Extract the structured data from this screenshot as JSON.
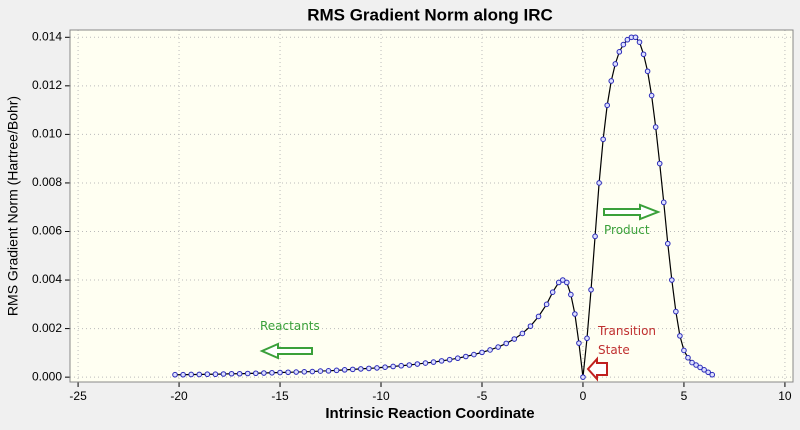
{
  "chart_data": {
    "type": "line",
    "title": "RMS Gradient Norm along IRC",
    "x_label": "Intrinsic Reaction Coordinate",
    "y_label": "RMS Gradient Norm (Hartree/Bohr)",
    "x": [
      -20.2,
      -19.8,
      -19.4,
      -19.0,
      -18.6,
      -18.2,
      -17.8,
      -17.4,
      -17.0,
      -16.6,
      -16.2,
      -15.8,
      -15.4,
      -15.0,
      -14.6,
      -14.2,
      -13.8,
      -13.4,
      -13.0,
      -12.6,
      -12.2,
      -11.8,
      -11.4,
      -11.0,
      -10.6,
      -10.2,
      -9.8,
      -9.4,
      -9.0,
      -8.6,
      -8.2,
      -7.8,
      -7.4,
      -7.0,
      -6.6,
      -6.2,
      -5.8,
      -5.4,
      -5.0,
      -4.6,
      -4.2,
      -3.8,
      -3.4,
      -3.0,
      -2.6,
      -2.2,
      -1.8,
      -1.5,
      -1.2,
      -1.0,
      -0.8,
      -0.6,
      -0.4,
      -0.2,
      0,
      0.2,
      0.4,
      0.6,
      0.8,
      1.0,
      1.2,
      1.4,
      1.6,
      1.8,
      2.0,
      2.2,
      2.4,
      2.6,
      2.8,
      3.0,
      3.2,
      3.4,
      3.6,
      3.8,
      4.0,
      4.2,
      4.4,
      4.6,
      4.8,
      5.0,
      5.2,
      5.4,
      5.6,
      5.8,
      6.0,
      6.2,
      6.4
    ],
    "series": [
      {
        "color": "#2a2ab8",
        "values": [
          0.0001,
          0.0001,
          0.00011,
          0.00011,
          0.00012,
          0.00012,
          0.00013,
          0.00014,
          0.00014,
          0.00015,
          0.00016,
          0.00017,
          0.00018,
          0.00019,
          0.0002,
          0.00021,
          0.00022,
          0.00023,
          0.00025,
          0.00026,
          0.00028,
          0.0003,
          0.00032,
          0.00034,
          0.00036,
          0.00038,
          0.00041,
          0.00044,
          0.00047,
          0.0005,
          0.00054,
          0.00058,
          0.00062,
          0.00067,
          0.00072,
          0.00078,
          0.00085,
          0.00093,
          0.00102,
          0.00112,
          0.00124,
          0.00139,
          0.00157,
          0.0018,
          0.0021,
          0.0025,
          0.003,
          0.0035,
          0.0039,
          0.004,
          0.0039,
          0.0034,
          0.0026,
          0.0014,
          0,
          0.0016,
          0.0036,
          0.0058,
          0.008,
          0.0098,
          0.0112,
          0.0122,
          0.0129,
          0.0134,
          0.0137,
          0.0139,
          0.014,
          0.014,
          0.0138,
          0.0133,
          0.0126,
          0.0116,
          0.0103,
          0.0088,
          0.0072,
          0.0055,
          0.004,
          0.0027,
          0.0017,
          0.0011,
          0.0008,
          0.0006,
          0.0005,
          0.0004,
          0.0003,
          0.0002,
          0.0001
        ]
      }
    ],
    "xlim": [
      -25.4,
      10.4
    ],
    "ylim": [
      -0.0002,
      0.0143
    ],
    "xticks": [
      -25,
      -20,
      -15,
      -10,
      -5,
      0,
      5,
      10
    ],
    "yticks": [
      {
        "value": 0,
        "label": "0.000"
      },
      {
        "value": 0.002,
        "label": "0.002"
      },
      {
        "value": 0.004,
        "label": "0.004"
      },
      {
        "value": 0.006,
        "label": "0.006"
      },
      {
        "value": 0.008,
        "label": "0.008"
      },
      {
        "value": 0.01,
        "label": "0.010"
      },
      {
        "value": 0.012,
        "label": "0.012"
      },
      {
        "value": 0.014,
        "label": "0.014"
      }
    ],
    "grid": true,
    "annotations": [
      "Reactants",
      "Product",
      "Transition State"
    ]
  }
}
